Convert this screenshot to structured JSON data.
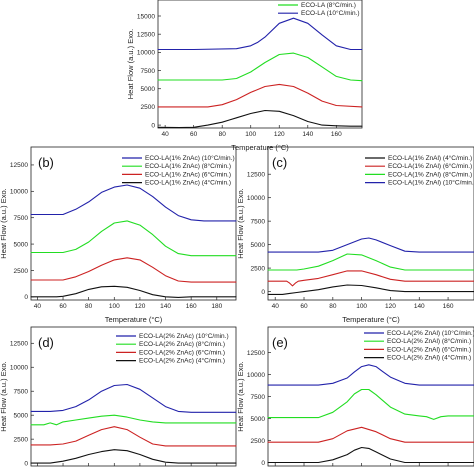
{
  "colors": {
    "black": "#111111",
    "red": "#cc2222",
    "green": "#22dd22",
    "blue": "#2222aa"
  },
  "chart_data": [
    {
      "type": "line",
      "id": "top",
      "letter": "",
      "xlabel": "Temperature (°C)",
      "ylabel": "Heat Flow (a.u.) Exo.",
      "xlim": [
        35,
        178
      ],
      "ylim": [
        -400,
        17200
      ],
      "xticks": [
        "40",
        "60",
        "80",
        "100",
        "120",
        "140",
        "160"
      ],
      "yticks": [
        "0",
        "2500",
        "5000",
        "7500",
        "10000",
        "12500",
        "15000"
      ],
      "legend_position": "top-right",
      "series": [
        {
          "name": "",
          "color": "#111111",
          "x": [
            35,
            50,
            60,
            70,
            80,
            85,
            90,
            100,
            110,
            120,
            130,
            140,
            150,
            160,
            170,
            178
          ],
          "y": [
            -300,
            -350,
            -300,
            0,
            400,
            700,
            1000,
            1600,
            2000,
            1900,
            1300,
            500,
            0,
            -100,
            -150,
            -150
          ]
        },
        {
          "name": "",
          "color": "#cc2222",
          "x": [
            35,
            50,
            60,
            70,
            80,
            90,
            100,
            110,
            120,
            130,
            140,
            150,
            160,
            178
          ],
          "y": [
            2500,
            2500,
            2500,
            2500,
            2800,
            3500,
            4500,
            5300,
            5600,
            5300,
            4400,
            3300,
            2700,
            2500
          ]
        },
        {
          "name": "ECO-LA (8°C/min.)",
          "color": "#22dd22",
          "x": [
            35,
            60,
            80,
            90,
            100,
            110,
            120,
            130,
            140,
            150,
            160,
            170,
            178
          ],
          "y": [
            6200,
            6200,
            6200,
            6400,
            7300,
            8600,
            9700,
            9900,
            9300,
            8000,
            6700,
            6200,
            6100
          ]
        },
        {
          "name": "ECO-LA (10°C/min.)",
          "color": "#2222aa",
          "x": [
            35,
            60,
            90,
            100,
            105,
            110,
            120,
            130,
            140,
            150,
            160,
            170,
            178
          ],
          "y": [
            10400,
            10400,
            10500,
            10900,
            11400,
            12100,
            14000,
            14700,
            14000,
            12400,
            10900,
            10400,
            10400
          ]
        }
      ]
    },
    {
      "type": "line",
      "id": "b",
      "letter": "(b)",
      "xlabel": "Temperature (°C)",
      "ylabel": "Heat Flow (a.u.) Exo.",
      "xlim": [
        35,
        195
      ],
      "ylim": [
        -300,
        14200
      ],
      "xticks": [
        "40",
        "60",
        "80",
        "100",
        "120",
        "140",
        "160",
        "180"
      ],
      "yticks": [
        "0",
        "2500",
        "5000",
        "7500",
        "10000",
        "12500"
      ],
      "legend_position": "top-left",
      "series": [
        {
          "name": "ECO-LA(1% ZnAc) (10°C/min.)",
          "color": "#2222aa",
          "x": [
            35,
            50,
            60,
            70,
            80,
            90,
            100,
            110,
            120,
            130,
            140,
            150,
            160,
            170,
            195
          ],
          "y": [
            7800,
            7800,
            7800,
            8300,
            9000,
            9900,
            10400,
            10600,
            10300,
            9500,
            8500,
            7700,
            7300,
            7200,
            7200
          ]
        },
        {
          "name": "ECO-LA(1% ZnAc) (8°C/min.)",
          "color": "#22dd22",
          "x": [
            35,
            60,
            70,
            80,
            90,
            100,
            110,
            120,
            130,
            140,
            150,
            160,
            195
          ],
          "y": [
            4200,
            4200,
            4500,
            5200,
            6200,
            7000,
            7200,
            6800,
            5900,
            4800,
            4100,
            3900,
            3900
          ]
        },
        {
          "name": "ECO-LA(1% ZnAc) (6°C/min.)",
          "color": "#cc2222",
          "x": [
            35,
            60,
            70,
            80,
            90,
            100,
            110,
            120,
            130,
            140,
            150,
            160,
            195
          ],
          "y": [
            1600,
            1600,
            1900,
            2400,
            3000,
            3500,
            3700,
            3500,
            2800,
            2000,
            1500,
            1400,
            1400
          ]
        },
        {
          "name": "ECO-LA(1% ZnAc) (4°C/min.)",
          "color": "#111111",
          "x": [
            35,
            55,
            60,
            70,
            80,
            90,
            100,
            110,
            120,
            130,
            140,
            150,
            160,
            195
          ],
          "y": [
            0,
            0,
            50,
            300,
            700,
            950,
            1000,
            900,
            600,
            200,
            0,
            -50,
            0,
            0
          ]
        }
      ]
    },
    {
      "type": "line",
      "id": "c",
      "letter": "(c)",
      "xlabel": "Temperature (°C)",
      "ylabel": "Heat Flow (a.u.) Exo.",
      "xlim": [
        35,
        178
      ],
      "ylim": [
        -900,
        15400
      ],
      "xticks": [
        "40",
        "60",
        "80",
        "100",
        "120",
        "140",
        "160"
      ],
      "yticks": [
        "0",
        "2500",
        "5000",
        "7500",
        "10000",
        "12500"
      ],
      "legend_position": "top-right",
      "series": [
        {
          "name": "ECO-LA(1% ZnAl) (4°C/min.)",
          "color": "#111111",
          "x": [
            35,
            45,
            50,
            55,
            60,
            70,
            80,
            90,
            100,
            110,
            120,
            130,
            140,
            178
          ],
          "y": [
            -300,
            -300,
            -200,
            -100,
            0,
            200,
            500,
            700,
            650,
            400,
            100,
            0,
            0,
            0
          ]
        },
        {
          "name": "ECO-LA(1% ZnAl) (6°C/min.)",
          "color": "#cc2222",
          "x": [
            35,
            48,
            50,
            52,
            54,
            56,
            60,
            70,
            80,
            90,
            100,
            110,
            120,
            130,
            140,
            178
          ],
          "y": [
            1100,
            1100,
            900,
            600,
            900,
            1100,
            1200,
            1400,
            1800,
            2200,
            2200,
            1800,
            1300,
            1100,
            1100,
            1100
          ]
        },
        {
          "name": "ECO-LA(1% ZnAl) (8°C/min.)",
          "color": "#22dd22",
          "x": [
            35,
            55,
            60,
            70,
            80,
            90,
            100,
            110,
            120,
            130,
            140,
            178
          ],
          "y": [
            2300,
            2300,
            2400,
            2700,
            3300,
            4000,
            3900,
            3300,
            2600,
            2300,
            2300,
            2300
          ]
        },
        {
          "name": "ECO-LA(1% ZnAl) (10°C/min.)",
          "color": "#2222aa",
          "x": [
            35,
            70,
            80,
            90,
            100,
            105,
            110,
            120,
            130,
            140,
            178
          ],
          "y": [
            4200,
            4200,
            4400,
            5000,
            5600,
            5700,
            5500,
            4900,
            4300,
            4200,
            4200
          ]
        }
      ]
    },
    {
      "type": "line",
      "id": "d",
      "letter": "(d)",
      "xlabel": "",
      "ylabel": "Heat Flow (a.u.) Exo.",
      "xlim": [
        35,
        195
      ],
      "ylim": [
        -300,
        14200
      ],
      "xticks": [],
      "yticks": [
        "0",
        "2500",
        "5000",
        "7500",
        "10000",
        "12500"
      ],
      "legend_position": "top-left",
      "series": [
        {
          "name": "ECO-LA(2% ZnAc) (10°C/min.)",
          "color": "#2222aa",
          "x": [
            35,
            50,
            60,
            70,
            80,
            90,
            100,
            110,
            120,
            130,
            140,
            150,
            160,
            170,
            195
          ],
          "y": [
            5400,
            5400,
            5500,
            5900,
            6600,
            7500,
            8100,
            8200,
            7700,
            6800,
            5900,
            5400,
            5300,
            5300,
            5300
          ]
        },
        {
          "name": "ECO-LA(2% ZnAc) (8°C/min.)",
          "color": "#22dd22",
          "x": [
            35,
            45,
            50,
            55,
            60,
            70,
            80,
            90,
            100,
            110,
            120,
            130,
            140,
            150,
            160,
            195
          ],
          "y": [
            4000,
            4000,
            4200,
            4000,
            4300,
            4500,
            4700,
            4900,
            5000,
            4800,
            4500,
            4300,
            4200,
            4200,
            4200,
            4200
          ]
        },
        {
          "name": "ECO-LA(2% ZnAc) (6°C/min.)",
          "color": "#cc2222",
          "x": [
            35,
            50,
            60,
            70,
            80,
            90,
            100,
            110,
            120,
            130,
            140,
            150,
            195
          ],
          "y": [
            1900,
            1900,
            2000,
            2300,
            2900,
            3500,
            3800,
            3500,
            2700,
            2000,
            1800,
            1800,
            1800
          ]
        },
        {
          "name": "ECO-LA(2% ZnAc) (4°C/min.)",
          "color": "#111111",
          "x": [
            35,
            50,
            60,
            70,
            80,
            90,
            100,
            110,
            120,
            130,
            140,
            150,
            160,
            195
          ],
          "y": [
            0,
            0,
            200,
            500,
            900,
            1200,
            1400,
            1300,
            900,
            400,
            100,
            0,
            0,
            0
          ]
        }
      ]
    },
    {
      "type": "line",
      "id": "e",
      "letter": "(e)",
      "xlabel": "",
      "ylabel": "Heat Flow (a.u.) Exo.",
      "xlim": [
        35,
        178
      ],
      "ylim": [
        -400,
        15400
      ],
      "xticks": [],
      "yticks": [
        "0",
        "2500",
        "5000",
        "7500",
        "10000",
        "12500"
      ],
      "legend_position": "top-right",
      "series": [
        {
          "name": "ECO-LA(2% ZnAl) (10°C/min.)",
          "color": "#2222aa",
          "x": [
            35,
            70,
            80,
            90,
            95,
            100,
            105,
            110,
            115,
            120,
            130,
            140,
            150,
            160,
            178
          ],
          "y": [
            8800,
            8800,
            9000,
            9600,
            10300,
            10900,
            11100,
            10900,
            10300,
            9700,
            9000,
            8800,
            8800,
            8800,
            8800
          ]
        },
        {
          "name": "ECO-LA(2% ZnAl) (8°C/min.)",
          "color": "#22dd22",
          "x": [
            35,
            70,
            80,
            90,
            95,
            100,
            105,
            110,
            120,
            130,
            140,
            145,
            150,
            155,
            160,
            178
          ],
          "y": [
            5100,
            5100,
            5700,
            6900,
            7800,
            8300,
            8300,
            7700,
            6300,
            5500,
            5300,
            5200,
            4900,
            5200,
            5300,
            5300
          ]
        },
        {
          "name": "ECO-LA(2% ZnAl) (6°C/min.)",
          "color": "#cc2222",
          "x": [
            35,
            70,
            80,
            90,
            100,
            110,
            120,
            130,
            140,
            150,
            178
          ],
          "y": [
            2300,
            2300,
            2700,
            3600,
            4000,
            3500,
            2700,
            2300,
            2300,
            2300,
            2300
          ]
        },
        {
          "name": "ECO-LA(2% ZnAl) (4°C/min.)",
          "color": "#111111",
          "x": [
            35,
            70,
            80,
            90,
            95,
            100,
            105,
            110,
            120,
            130,
            178
          ],
          "y": [
            0,
            0,
            300,
            900,
            1400,
            1700,
            1600,
            1200,
            400,
            0,
            0
          ]
        }
      ]
    }
  ]
}
